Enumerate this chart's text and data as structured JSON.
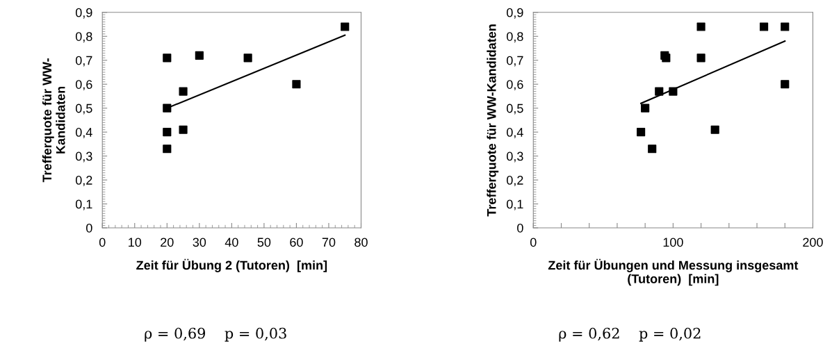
{
  "chart_data": [
    {
      "type": "scatter",
      "xlabel": "Zeit für Übung 2 (Tutoren)  [min]",
      "ylabel": "Trefferquote für WW-\nKandidaten",
      "grid": false,
      "legend": false,
      "xlim": [
        0,
        80
      ],
      "xticks": [
        0,
        10,
        20,
        30,
        40,
        50,
        60,
        70,
        80
      ],
      "ylim": [
        0,
        0.9
      ],
      "yticks": [
        {
          "value": 0,
          "label": "0"
        },
        {
          "value": 0.1,
          "label": "0,1"
        },
        {
          "value": 0.2,
          "label": "0,2"
        },
        {
          "value": 0.3,
          "label": "0,3"
        },
        {
          "value": 0.4,
          "label": "0,4"
        },
        {
          "value": 0.5,
          "label": "0,5"
        },
        {
          "value": 0.6,
          "label": "0,6"
        },
        {
          "value": 0.7,
          "label": "0,7"
        },
        {
          "value": 0.8,
          "label": "0,8"
        },
        {
          "value": 0.9,
          "label": "0,9"
        }
      ],
      "series": [
        {
          "marker": "square",
          "color": "#000000",
          "x": [
            20,
            20,
            20,
            20,
            25,
            25,
            30,
            45,
            60,
            75
          ],
          "values": [
            0.71,
            0.5,
            0.4,
            0.33,
            0.57,
            0.41,
            0.72,
            0.71,
            0.6,
            0.84
          ]
        },
        {
          "type": "line",
          "color": "#000000",
          "x": [
            20,
            75
          ],
          "values": [
            0.5,
            0.805
          ]
        }
      ],
      "annotations": [
        "ρ = 0,69    p = 0,03"
      ]
    },
    {
      "type": "scatter",
      "xlabel": "Zeit für Übungen und Messung insgesamt\n(Tutoren)  [min]",
      "ylabel": "Trefferquote für WW-Kandidaten",
      "grid": false,
      "legend": false,
      "xlim": [
        0,
        200
      ],
      "xticks": [
        0,
        {
          "value": 20,
          "label": null
        },
        {
          "value": 40,
          "label": null
        },
        {
          "value": 60,
          "label": null
        },
        {
          "value": 80,
          "label": null
        },
        100,
        {
          "value": 120,
          "label": null
        },
        {
          "value": 140,
          "label": null
        },
        {
          "value": 160,
          "label": null
        },
        {
          "value": 180,
          "label": null
        },
        200
      ],
      "ylim": [
        0,
        0.9
      ],
      "yticks": [
        {
          "value": 0,
          "label": "0"
        },
        {
          "value": 0.1,
          "label": "0,1"
        },
        {
          "value": 0.2,
          "label": "0,2"
        },
        {
          "value": 0.3,
          "label": "0,3"
        },
        {
          "value": 0.4,
          "label": "0,4"
        },
        {
          "value": 0.5,
          "label": "0,5"
        },
        {
          "value": 0.6,
          "label": "0,6"
        },
        {
          "value": 0.7,
          "label": "0,7"
        },
        {
          "value": 0.8,
          "label": "0,8"
        },
        {
          "value": 0.9,
          "label": "0,9"
        }
      ],
      "series": [
        {
          "marker": "square",
          "color": "#000000",
          "x": [
            77,
            80,
            85,
            90,
            94,
            95,
            100,
            120,
            120,
            130,
            165,
            180,
            180
          ],
          "values": [
            0.4,
            0.5,
            0.33,
            0.57,
            0.72,
            0.71,
            0.57,
            0.84,
            0.71,
            0.41,
            0.84,
            0.84,
            0.6
          ]
        },
        {
          "type": "line",
          "color": "#000000",
          "x": [
            77,
            180
          ],
          "values": [
            0.52,
            0.78
          ]
        }
      ],
      "annotations": [
        "ρ = 0,62    p = 0,02"
      ]
    }
  ]
}
